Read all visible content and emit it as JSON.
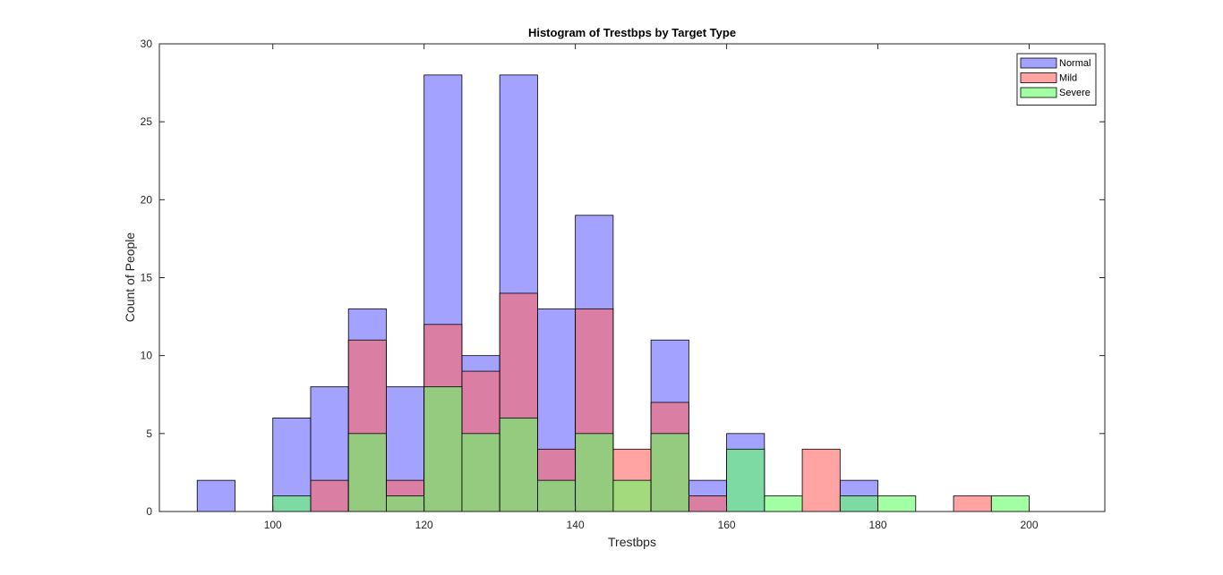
{
  "chart_data": {
    "type": "bar",
    "title": "Histogram of Trestbps by Target Type",
    "xlabel": "Trestbps",
    "ylabel": "Count of People",
    "xlim": [
      85,
      210
    ],
    "ylim": [
      0,
      30
    ],
    "xticks": [
      100,
      120,
      140,
      160,
      180,
      200
    ],
    "yticks": [
      0,
      5,
      10,
      15,
      20,
      25,
      30
    ],
    "bin_width": 5,
    "bin_starts": [
      90,
      95,
      100,
      105,
      110,
      115,
      120,
      125,
      130,
      135,
      140,
      145,
      150,
      155,
      160,
      165,
      170,
      175,
      180,
      185,
      190,
      195
    ],
    "series": [
      {
        "name": "Normal",
        "color": "#6666ff",
        "values": [
          2,
          0,
          6,
          8,
          13,
          8,
          28,
          10,
          28,
          13,
          19,
          0,
          11,
          2,
          5,
          0,
          0,
          2,
          0,
          0,
          0,
          0
        ]
      },
      {
        "name": "Mild",
        "color": "#ff6666",
        "values": [
          0,
          0,
          0,
          2,
          11,
          2,
          12,
          9,
          14,
          4,
          13,
          4,
          7,
          1,
          0,
          0,
          4,
          0,
          0,
          0,
          1,
          0
        ]
      },
      {
        "name": "Severe",
        "color": "#66ff66",
        "values": [
          0,
          0,
          1,
          0,
          5,
          1,
          8,
          5,
          6,
          2,
          5,
          2,
          5,
          0,
          4,
          1,
          0,
          1,
          1,
          0,
          0,
          1
        ]
      }
    ],
    "legend_position": "top-right",
    "grid": false
  }
}
